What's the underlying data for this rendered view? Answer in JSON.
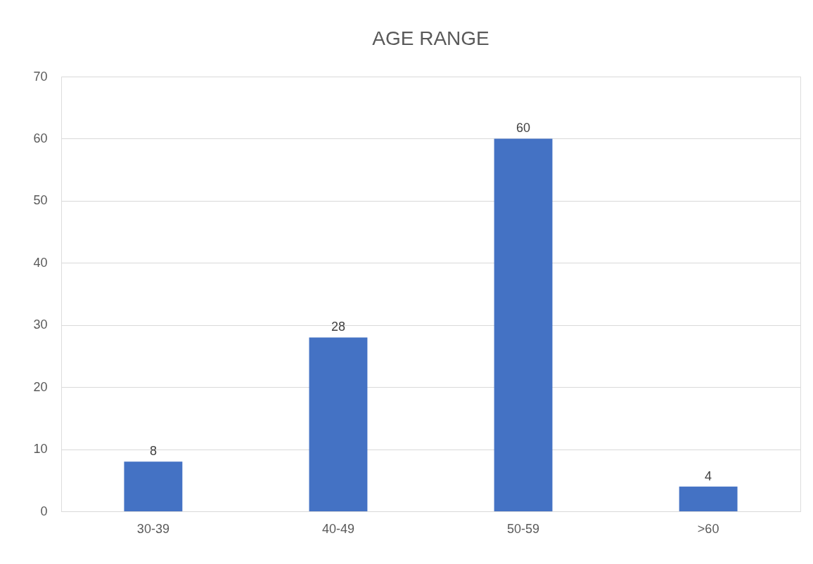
{
  "chart_data": {
    "type": "bar",
    "title": "AGE RANGE",
    "categories": [
      "30-39",
      "40-49",
      "50-59",
      ">60"
    ],
    "values": [
      8,
      28,
      60,
      4
    ],
    "color": "#4472c4",
    "ylim": [
      0,
      70
    ],
    "yticks": [
      0,
      10,
      20,
      30,
      40,
      50,
      60,
      70
    ],
    "grid": "y",
    "data_labels": true
  }
}
